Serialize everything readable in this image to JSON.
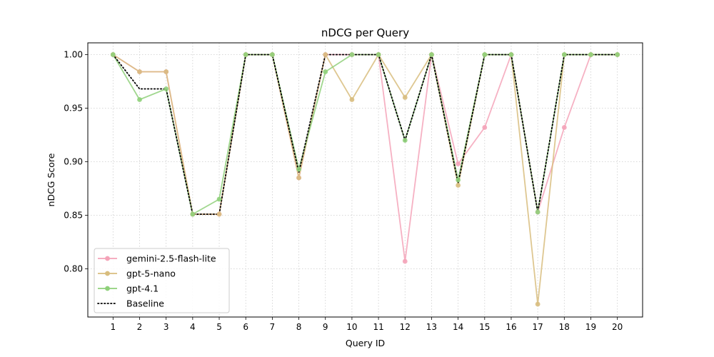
{
  "chart_data": {
    "type": "line",
    "title": "nDCG per Query",
    "xlabel": "Query ID",
    "ylabel": "nDCG Score",
    "x": [
      1,
      2,
      3,
      4,
      5,
      6,
      7,
      8,
      9,
      10,
      11,
      12,
      13,
      14,
      15,
      16,
      17,
      18,
      19,
      20
    ],
    "xticks": [
      "1",
      "2",
      "3",
      "4",
      "5",
      "6",
      "7",
      "8",
      "9",
      "10",
      "11",
      "12",
      "13",
      "14",
      "15",
      "16",
      "17",
      "18",
      "19",
      "20"
    ],
    "yticks": [
      "0.80",
      "0.85",
      "0.90",
      "0.95",
      "1.00"
    ],
    "ytick_values": [
      0.8,
      0.85,
      0.9,
      0.95,
      1.0
    ],
    "xlim": [
      0.05,
      20.95
    ],
    "ylim": [
      0.755,
      1.011
    ],
    "grid": true,
    "legend_position": "lower-left",
    "series": [
      {
        "name": "gemini-2.5-flash-lite",
        "color": "#f4a3b8",
        "style": "solid-marker",
        "values": [
          1.0,
          0.984,
          0.984,
          0.851,
          0.851,
          1.0,
          1.0,
          0.885,
          1.0,
          1.0,
          1.0,
          0.807,
          1.0,
          0.898,
          0.932,
          1.0,
          0.853,
          0.932,
          1.0,
          1.0
        ]
      },
      {
        "name": "gpt-5-nano",
        "color": "#d8bd7e",
        "style": "solid-marker",
        "values": [
          1.0,
          0.984,
          0.984,
          0.851,
          0.851,
          1.0,
          1.0,
          0.885,
          1.0,
          0.958,
          1.0,
          0.96,
          1.0,
          0.878,
          1.0,
          1.0,
          0.767,
          1.0,
          1.0,
          1.0
        ]
      },
      {
        "name": "gpt-4.1",
        "color": "#8fd07a",
        "style": "solid-marker",
        "values": [
          1.0,
          0.958,
          0.968,
          0.851,
          0.865,
          1.0,
          1.0,
          0.893,
          0.984,
          1.0,
          1.0,
          0.92,
          1.0,
          0.883,
          1.0,
          1.0,
          0.853,
          1.0,
          1.0,
          1.0
        ]
      },
      {
        "name": "Baseline",
        "color": "#000000",
        "style": "dotted",
        "values": [
          1.0,
          0.968,
          0.968,
          0.851,
          0.851,
          1.0,
          1.0,
          0.89,
          1.0,
          1.0,
          1.0,
          0.92,
          1.0,
          0.88,
          1.0,
          1.0,
          0.853,
          1.0,
          1.0,
          1.0
        ]
      }
    ]
  }
}
